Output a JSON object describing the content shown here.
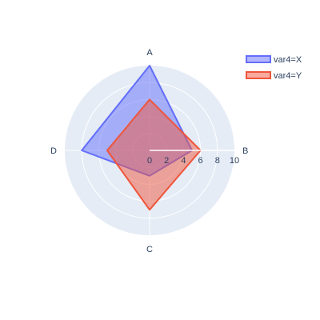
{
  "chart_data": {
    "type": "radar",
    "categories": [
      "A",
      "B",
      "C",
      "D"
    ],
    "series": [
      {
        "name": "var4=X",
        "values": [
          10,
          5,
          3,
          8
        ],
        "color": "#636efa"
      },
      {
        "name": "var4=Y",
        "values": [
          6,
          6,
          7,
          5
        ],
        "color": "#ef553b"
      }
    ],
    "radial_range": [
      0,
      10
    ],
    "radial_ticks": [
      "0",
      "2",
      "4",
      "6",
      "8",
      "10"
    ],
    "grid": true,
    "legend_position": "top-right"
  }
}
